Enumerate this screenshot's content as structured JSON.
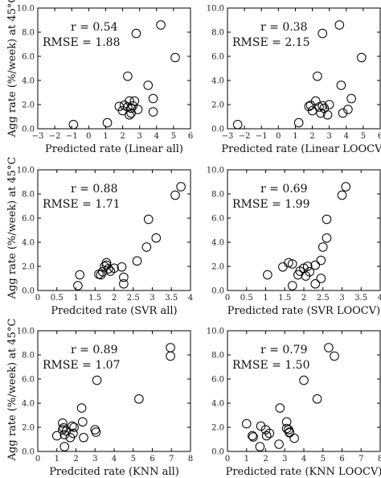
{
  "figure": {
    "ylabel": "Agg rate (%/week) at 45°C"
  },
  "chart_data": [
    {
      "type": "scatter",
      "xlabel": "Predicted rate (Linear all)",
      "r_text": "r = 0.54",
      "rmse_text": "RMSE = 1.88",
      "xlim": [
        -3,
        6
      ],
      "ylim": [
        0,
        10
      ],
      "xticks": [
        -3,
        -2,
        -1,
        0,
        1,
        2,
        3,
        4,
        5,
        6
      ],
      "yticks": [
        0,
        2,
        4,
        6,
        8,
        10
      ],
      "points": [
        [
          -0.9,
          0.35
        ],
        [
          1.1,
          0.5
        ],
        [
          2.3,
          4.35
        ],
        [
          2.8,
          7.9
        ],
        [
          4.25,
          8.6
        ],
        [
          5.1,
          5.9
        ],
        [
          3.5,
          3.6
        ],
        [
          3.8,
          2.5
        ],
        [
          3.8,
          1.4
        ],
        [
          1.8,
          1.85
        ],
        [
          2.0,
          1.5
        ],
        [
          2.1,
          1.95
        ],
        [
          2.3,
          1.8
        ],
        [
          2.5,
          1.7
        ],
        [
          2.5,
          1.3
        ],
        [
          2.4,
          2.3
        ],
        [
          2.6,
          1.9
        ],
        [
          2.9,
          1.6
        ],
        [
          2.7,
          2.3
        ],
        [
          2.4,
          1.15
        ]
      ]
    },
    {
      "type": "scatter",
      "xlabel": "Predicted rate (Linear LOOCV)",
      "r_text": "r = 0.38",
      "rmse_text": "RMSE = 2.15",
      "xlim": [
        -3,
        6
      ],
      "ylim": [
        0,
        10
      ],
      "xticks": [
        -3,
        -2,
        -1,
        0,
        1,
        2,
        3,
        4,
        5,
        6
      ],
      "yticks": [
        0,
        2,
        4,
        6,
        8,
        10
      ],
      "points": [
        [
          -2.4,
          0.35
        ],
        [
          1.2,
          0.5
        ],
        [
          2.3,
          4.35
        ],
        [
          2.6,
          7.9
        ],
        [
          3.6,
          8.6
        ],
        [
          4.9,
          5.9
        ],
        [
          3.7,
          3.6
        ],
        [
          4.3,
          2.5
        ],
        [
          3.8,
          1.3
        ],
        [
          4.1,
          1.6
        ],
        [
          1.8,
          1.85
        ],
        [
          2.0,
          1.5
        ],
        [
          2.2,
          2.3
        ],
        [
          2.4,
          1.8
        ],
        [
          2.5,
          1.3
        ],
        [
          2.6,
          1.9
        ],
        [
          2.7,
          1.7
        ],
        [
          2.9,
          1.15
        ],
        [
          3.0,
          2.0
        ],
        [
          1.9,
          1.95
        ]
      ]
    },
    {
      "type": "scatter",
      "xlabel": "Predcited rate (SVR all)",
      "r_text": "r = 0.88",
      "rmse_text": "RMSE = 1.71",
      "xlim": [
        0,
        4
      ],
      "ylim": [
        0,
        10
      ],
      "xticks": [
        0,
        0.5,
        1,
        1.5,
        2,
        2.5,
        3,
        3.5,
        4
      ],
      "yticks": [
        0,
        2,
        4,
        6,
        8,
        10
      ],
      "points": [
        [
          1.05,
          0.4
        ],
        [
          1.1,
          1.3
        ],
        [
          1.6,
          1.35
        ],
        [
          1.65,
          1.3
        ],
        [
          1.7,
          1.55
        ],
        [
          1.75,
          2.0
        ],
        [
          1.8,
          2.3
        ],
        [
          1.8,
          2.1
        ],
        [
          1.85,
          1.8
        ],
        [
          1.9,
          1.6
        ],
        [
          2.0,
          1.85
        ],
        [
          2.2,
          1.95
        ],
        [
          2.25,
          1.1
        ],
        [
          2.25,
          0.55
        ],
        [
          2.6,
          2.45
        ],
        [
          2.85,
          3.6
        ],
        [
          2.9,
          5.9
        ],
        [
          3.1,
          4.35
        ],
        [
          3.6,
          7.9
        ],
        [
          3.75,
          8.6
        ]
      ]
    },
    {
      "type": "scatter",
      "xlabel": "Predicted rate (SVR LOOCV)",
      "r_text": "r = 0.69",
      "rmse_text": "RMSE = 1.99",
      "xlim": [
        0,
        4
      ],
      "ylim": [
        0,
        10
      ],
      "xticks": [
        0,
        0.5,
        1,
        1.5,
        2,
        2.5,
        3,
        3.5,
        4
      ],
      "yticks": [
        0,
        2,
        4,
        6,
        8,
        10
      ],
      "points": [
        [
          1.05,
          1.3
        ],
        [
          1.45,
          1.95
        ],
        [
          1.6,
          2.3
        ],
        [
          1.7,
          2.2
        ],
        [
          1.7,
          0.4
        ],
        [
          1.85,
          1.3
        ],
        [
          1.9,
          1.6
        ],
        [
          2.0,
          1.85
        ],
        [
          2.05,
          1.2
        ],
        [
          2.1,
          2.0
        ],
        [
          2.15,
          1.55
        ],
        [
          2.3,
          2.1
        ],
        [
          2.3,
          0.55
        ],
        [
          2.45,
          1.0
        ],
        [
          2.45,
          2.5
        ],
        [
          2.5,
          3.6
        ],
        [
          2.6,
          4.35
        ],
        [
          2.6,
          5.9
        ],
        [
          3.0,
          7.9
        ],
        [
          3.1,
          8.6
        ]
      ]
    },
    {
      "type": "scatter",
      "xlabel": "Predcited rate (KNN all)",
      "r_text": "r = 0.89",
      "rmse_text": "RMSE = 1.07",
      "xlim": [
        0,
        8
      ],
      "ylim": [
        0,
        10
      ],
      "xticks": [
        0,
        1,
        2,
        3,
        4,
        5,
        6,
        7,
        8
      ],
      "yticks": [
        0,
        2,
        4,
        6,
        8,
        10
      ],
      "points": [
        [
          1.0,
          1.3
        ],
        [
          1.3,
          2.35
        ],
        [
          1.35,
          1.95
        ],
        [
          1.4,
          1.4
        ],
        [
          1.4,
          0.4
        ],
        [
          1.5,
          1.7
        ],
        [
          1.7,
          1.15
        ],
        [
          1.8,
          2.1
        ],
        [
          1.85,
          1.5
        ],
        [
          1.9,
          2.0
        ],
        [
          2.3,
          3.6
        ],
        [
          2.35,
          2.45
        ],
        [
          2.4,
          1.15
        ],
        [
          3.0,
          1.8
        ],
        [
          3.05,
          1.6
        ],
        [
          3.1,
          5.9
        ],
        [
          5.3,
          4.35
        ],
        [
          6.95,
          7.9
        ],
        [
          6.95,
          8.6
        ],
        [
          1.3,
          1.8
        ]
      ]
    },
    {
      "type": "scatter",
      "xlabel": "Predicted rate (KNN LOOCV)",
      "r_text": "r = 0.79",
      "rmse_text": "RMSE = 1.50",
      "xlim": [
        0,
        8
      ],
      "ylim": [
        0,
        10
      ],
      "xticks": [
        0,
        1,
        2,
        3,
        4,
        5,
        6,
        7,
        8
      ],
      "yticks": [
        0,
        2,
        4,
        6,
        8,
        10
      ],
      "points": [
        [
          1.0,
          2.3
        ],
        [
          1.3,
          1.3
        ],
        [
          1.35,
          1.2
        ],
        [
          1.7,
          0.4
        ],
        [
          1.75,
          2.1
        ],
        [
          2.0,
          1.8
        ],
        [
          2.05,
          1.3
        ],
        [
          2.2,
          1.5
        ],
        [
          2.7,
          0.6
        ],
        [
          2.75,
          3.6
        ],
        [
          3.1,
          1.9
        ],
        [
          3.1,
          2.45
        ],
        [
          3.2,
          1.8
        ],
        [
          3.25,
          1.55
        ],
        [
          3.5,
          1.1
        ],
        [
          3.25,
          1.6
        ],
        [
          4.0,
          5.9
        ],
        [
          4.7,
          4.35
        ],
        [
          5.3,
          8.6
        ],
        [
          5.6,
          7.9
        ]
      ]
    }
  ]
}
